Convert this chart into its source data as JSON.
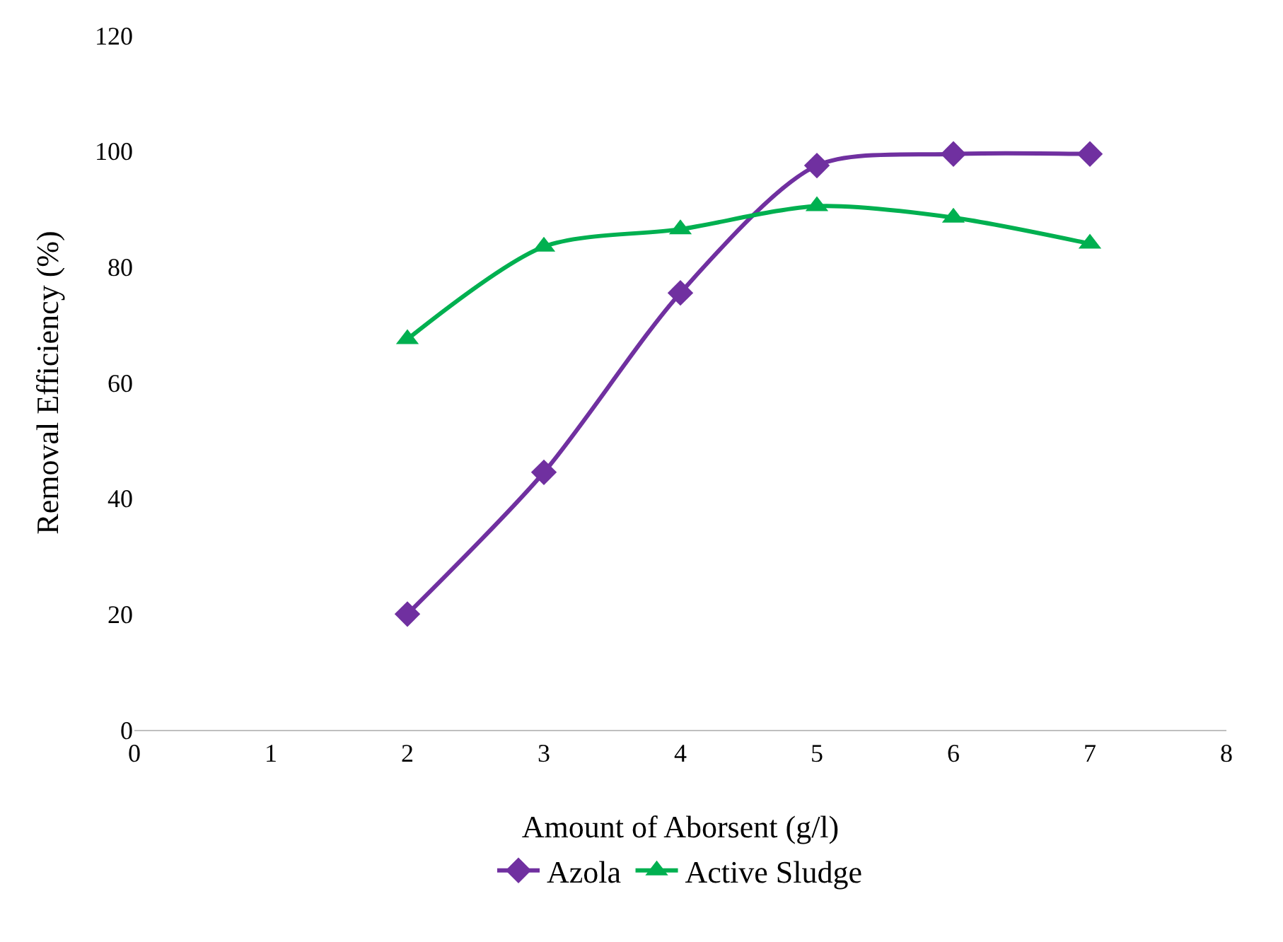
{
  "chart_data": {
    "type": "line",
    "xlabel": "Amount of Aborsent (g/l)",
    "ylabel": "Removal Efficiency (%)",
    "x": [
      2,
      3,
      4,
      5,
      6,
      7
    ],
    "series": [
      {
        "name": "Azola",
        "color": "#7030a0",
        "marker": "diamond",
        "values": [
          20,
          44.5,
          75.5,
          97.5,
          99.5,
          99.5
        ]
      },
      {
        "name": "Active Sludge",
        "color": "#00b050",
        "marker": "triangle",
        "values": [
          67.5,
          83.5,
          86.5,
          90.5,
          88.5,
          84
        ]
      }
    ],
    "xlim": [
      0,
      8
    ],
    "xticks": [
      0,
      1,
      2,
      3,
      4,
      5,
      6,
      7,
      8
    ],
    "ylim": [
      0,
      120
    ],
    "yticks": [
      0,
      20,
      40,
      60,
      80,
      100,
      120
    ],
    "grid": false,
    "legend": "bottom",
    "line_style": "solid"
  }
}
